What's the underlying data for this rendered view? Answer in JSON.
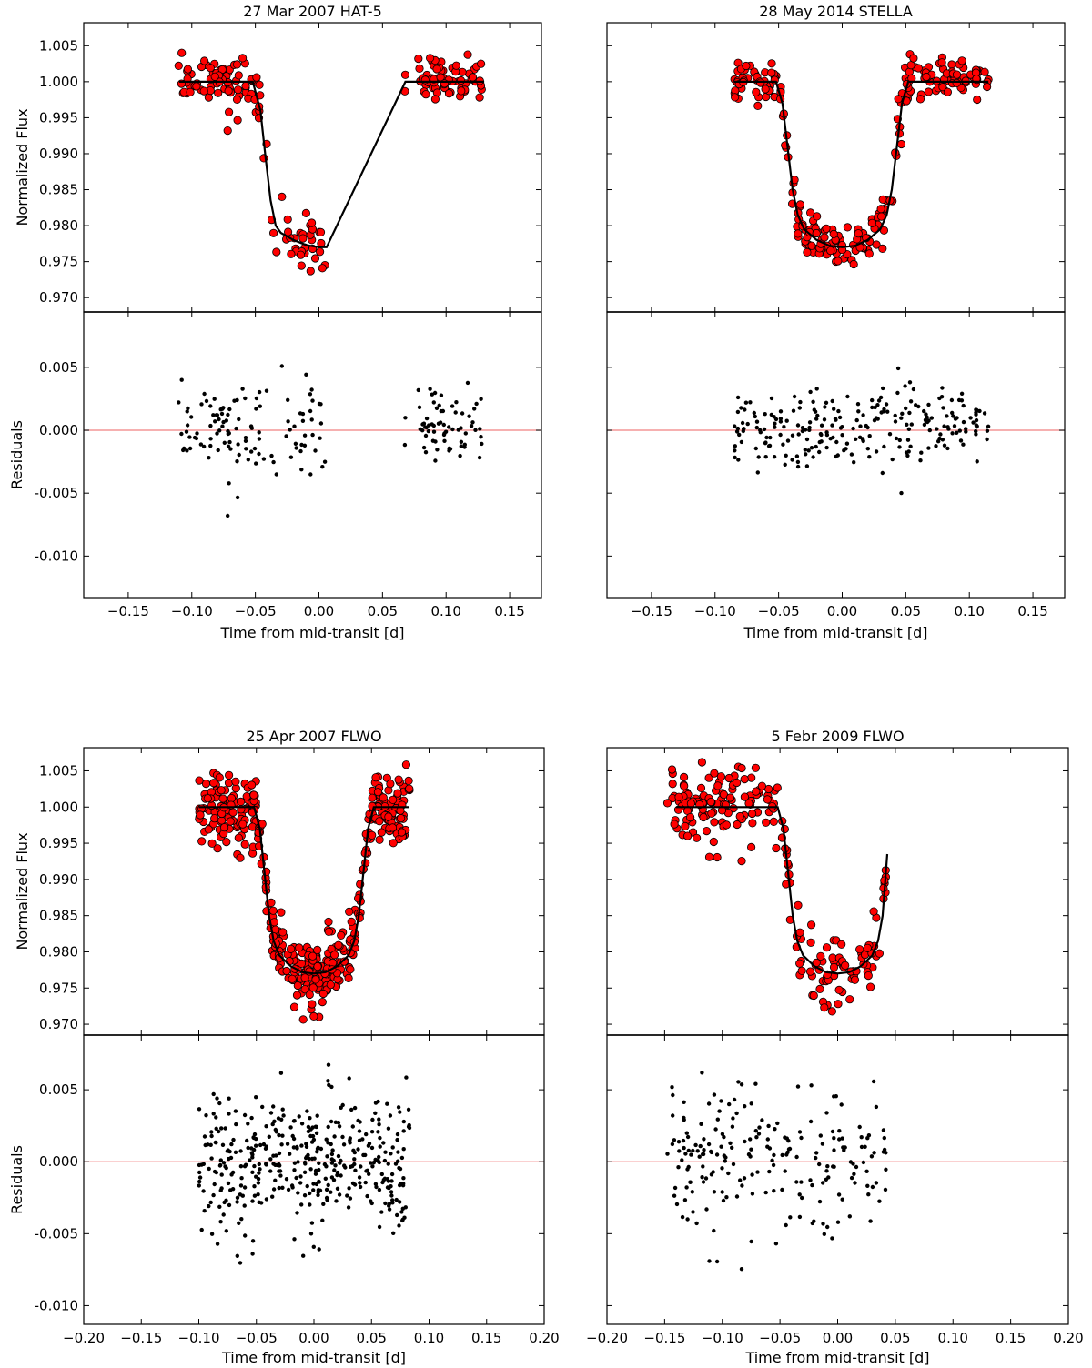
{
  "figure": {
    "type": "transit light curves with residuals",
    "flux_color": "#ff0000",
    "model_color": "#000000",
    "residual_color": "#000000",
    "zero_line_color": "#f08080"
  },
  "chart_data": [
    {
      "type": "scatter",
      "title": "27 Mar 2007 HAT-5",
      "xlabel": "Time from mid-transit [d]",
      "ylabel_top": "Normalized Flux",
      "ylabel_bottom": "Residuals",
      "xlim": [
        -0.185,
        0.175
      ],
      "flux_ylim": [
        0.968,
        1.0082
      ],
      "resid_ylim": [
        -0.0133,
        0.0094
      ],
      "xticks": [
        -0.15,
        -0.1,
        -0.05,
        0.0,
        0.05,
        0.1,
        0.15
      ],
      "xtick_labels": [
        "−0.15",
        "−0.10",
        "−0.05",
        "0.00",
        "0.05",
        "0.10",
        "0.15"
      ],
      "flux_yticks": [
        0.97,
        0.975,
        0.98,
        0.985,
        0.99,
        0.995,
        1.0,
        1.005
      ],
      "flux_ytick_labels": [
        "0.970",
        "0.975",
        "0.980",
        "0.985",
        "0.990",
        "0.995",
        "1.000",
        "1.005"
      ],
      "resid_yticks": [
        -0.01,
        -0.005,
        0.0,
        0.005
      ],
      "resid_ytick_labels": [
        "-0.010",
        "-0.005",
        "0.000",
        "0.005"
      ],
      "model": {
        "x": [
          -0.11,
          -0.052,
          -0.046,
          -0.042,
          -0.038,
          -0.034,
          -0.03,
          -0.02,
          -0.01,
          0.0,
          0.006,
          0.068,
          0.13
        ],
        "y": [
          1.0,
          1.0,
          0.996,
          0.9895,
          0.9835,
          0.98,
          0.979,
          0.978,
          0.9773,
          0.977,
          0.977,
          1.0,
          1.0
        ]
      },
      "segments": [
        {
          "xmin": -0.112,
          "xmax": -0.048,
          "n": 74,
          "sigma": 0.0018
        },
        {
          "xmin": -0.048,
          "xmax": -0.036,
          "n": 8,
          "sigma": 0.002
        },
        {
          "xmin": -0.036,
          "xmax": 0.005,
          "n": 34,
          "sigma": 0.0019
        },
        {
          "xmin": 0.066,
          "xmax": 0.068,
          "n": 2,
          "sigma": 0.002
        },
        {
          "xmin": 0.078,
          "xmax": 0.13,
          "n": 66,
          "sigma": 0.0013
        }
      ],
      "seed": 11
    },
    {
      "type": "scatter",
      "title": "28 May 2014 STELLA",
      "xlabel": "Time from mid-transit [d]",
      "xlim": [
        -0.185,
        0.175
      ],
      "flux_ylim": [
        0.968,
        1.0082
      ],
      "resid_ylim": [
        -0.0133,
        0.0094
      ],
      "xticks": [
        -0.15,
        -0.1,
        -0.05,
        0.0,
        0.05,
        0.1,
        0.15
      ],
      "xtick_labels": [
        "−0.15",
        "−0.10",
        "−0.05",
        "0.00",
        "0.05",
        "0.10",
        "0.15"
      ],
      "model": {
        "x": [
          -0.085,
          -0.052,
          -0.047,
          -0.043,
          -0.039,
          -0.035,
          -0.03,
          -0.02,
          -0.01,
          0.0,
          0.01,
          0.02,
          0.03,
          0.035,
          0.039,
          0.043,
          0.047,
          0.052,
          0.115
        ],
        "y": [
          1.0,
          1.0,
          0.997,
          0.991,
          0.985,
          0.9815,
          0.9795,
          0.978,
          0.9772,
          0.977,
          0.9772,
          0.978,
          0.9795,
          0.9815,
          0.985,
          0.991,
          0.997,
          1.0,
          1.0
        ]
      },
      "segments": [
        {
          "xmin": -0.085,
          "xmax": -0.05,
          "n": 45,
          "sigma": 0.0015
        },
        {
          "xmin": -0.05,
          "xmax": -0.036,
          "n": 14,
          "sigma": 0.0017
        },
        {
          "xmin": -0.036,
          "xmax": 0.036,
          "n": 95,
          "sigma": 0.0016
        },
        {
          "xmin": 0.036,
          "xmax": 0.05,
          "n": 14,
          "sigma": 0.0017
        },
        {
          "xmin": 0.05,
          "xmax": 0.115,
          "n": 80,
          "sigma": 0.0014
        }
      ],
      "seed": 23
    },
    {
      "type": "scatter",
      "title": "25 Apr 2007 FLWO",
      "xlabel": "Time from mid-transit [d]",
      "ylabel_top": "Normalized Flux",
      "ylabel_bottom": "Residuals",
      "xlim": [
        -0.2,
        0.2
      ],
      "flux_ylim": [
        0.9685,
        1.0082
      ],
      "resid_ylim": [
        -0.0113,
        0.0088
      ],
      "xticks": [
        -0.2,
        -0.15,
        -0.1,
        -0.05,
        0.0,
        0.05,
        0.1,
        0.15,
        0.2
      ],
      "xtick_labels": [
        "−0.20",
        "−0.15",
        "−0.10",
        "−0.05",
        "0.00",
        "0.05",
        "0.10",
        "0.15",
        "0.20"
      ],
      "flux_yticks": [
        0.97,
        0.975,
        0.98,
        0.985,
        0.99,
        0.995,
        1.0,
        1.005
      ],
      "flux_ytick_labels": [
        "0.970",
        "0.975",
        "0.980",
        "0.985",
        "0.990",
        "0.995",
        "1.000",
        "1.005"
      ],
      "resid_yticks": [
        -0.01,
        -0.005,
        0.0,
        0.005
      ],
      "resid_ytick_labels": [
        "-0.010",
        "-0.005",
        "0.000",
        "0.005"
      ],
      "model": {
        "x": [
          -0.1,
          -0.052,
          -0.047,
          -0.043,
          -0.039,
          -0.035,
          -0.03,
          -0.02,
          -0.01,
          0.0,
          0.01,
          0.02,
          0.03,
          0.035,
          0.039,
          0.043,
          0.047,
          0.052,
          0.083
        ],
        "y": [
          1.0,
          1.0,
          0.997,
          0.991,
          0.985,
          0.9815,
          0.9795,
          0.978,
          0.9772,
          0.977,
          0.9772,
          0.978,
          0.9795,
          0.9815,
          0.985,
          0.991,
          0.997,
          1.0,
          1.0
        ]
      },
      "segments": [
        {
          "xmin": -0.1,
          "xmax": -0.05,
          "n": 115,
          "sigma": 0.0026
        },
        {
          "xmin": -0.05,
          "xmax": -0.036,
          "n": 22,
          "sigma": 0.0022
        },
        {
          "xmin": -0.036,
          "xmax": 0.036,
          "n": 175,
          "sigma": 0.0022
        },
        {
          "xmin": 0.036,
          "xmax": 0.05,
          "n": 22,
          "sigma": 0.0022
        },
        {
          "xmin": 0.05,
          "xmax": 0.083,
          "n": 86,
          "sigma": 0.0024
        }
      ],
      "seed": 37
    },
    {
      "type": "scatter",
      "title": "5 Febr 2009 FLWO",
      "xlabel": "Time from mid-transit [d]",
      "xlim": [
        -0.2,
        0.2
      ],
      "flux_ylim": [
        0.9685,
        1.0082
      ],
      "resid_ylim": [
        -0.0113,
        0.0088
      ],
      "xticks": [
        -0.2,
        -0.15,
        -0.1,
        -0.05,
        0.0,
        0.05,
        0.1,
        0.15,
        0.2
      ],
      "xtick_labels": [
        "−0.20",
        "−0.15",
        "−0.10",
        "−0.05",
        "0.00",
        "0.05",
        "0.10",
        "0.15",
        "0.20"
      ],
      "model": {
        "x": [
          -0.14,
          -0.052,
          -0.047,
          -0.043,
          -0.039,
          -0.035,
          -0.03,
          -0.02,
          -0.01,
          0.0,
          0.01,
          0.02,
          0.03,
          0.035,
          0.039,
          0.043
        ],
        "y": [
          1.0,
          1.0,
          0.997,
          0.991,
          0.985,
          0.9815,
          0.9795,
          0.978,
          0.9772,
          0.977,
          0.9772,
          0.978,
          0.9795,
          0.9815,
          0.985,
          0.9935
        ]
      },
      "segments": [
        {
          "xmin": -0.148,
          "xmax": -0.05,
          "n": 122,
          "sigma": 0.0026
        },
        {
          "xmin": -0.05,
          "xmax": -0.036,
          "n": 12,
          "sigma": 0.0022
        },
        {
          "xmin": -0.036,
          "xmax": 0.036,
          "n": 72,
          "sigma": 0.0023
        },
        {
          "xmin": 0.036,
          "xmax": 0.043,
          "n": 8,
          "sigma": 0.0022
        }
      ],
      "seed": 53
    }
  ]
}
